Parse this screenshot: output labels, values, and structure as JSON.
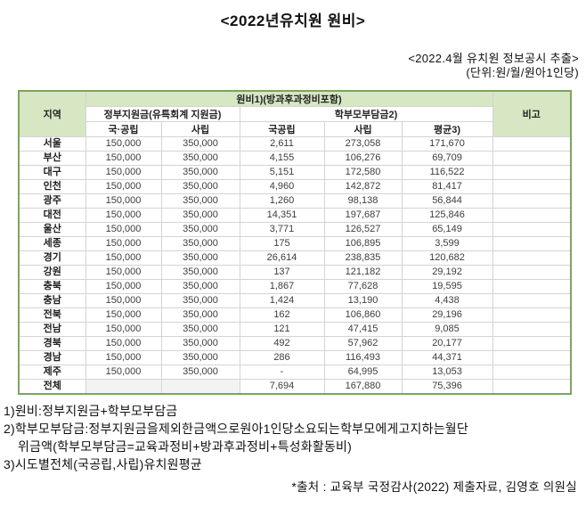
{
  "page": {
    "title": "<2022년유치원 원비>",
    "caption_line1": "<2022.4월 유치원 정보공시 추출>",
    "caption_line2": "(단위:원/월/원아1인당)"
  },
  "chart_data": {
    "type": "table",
    "title": "2022년유치원 원비",
    "unit": "원/월/원아1인당",
    "header": {
      "region": "지역",
      "group_top": "원비1)(방과후과정비포함)",
      "group_gov": "정부지원금(유특회계 지원금)",
      "group_parent": "학부모부담금2)",
      "sub_gov_public": "국·공립",
      "sub_gov_private": "사립",
      "sub_parent_public": "국공립",
      "sub_parent_private": "사립",
      "sub_parent_avg": "평균3)",
      "note": "비고"
    },
    "rows": [
      [
        "서울",
        "150,000",
        "350,000",
        "2,611",
        "273,058",
        "171,670",
        ""
      ],
      [
        "부산",
        "150,000",
        "350,000",
        "4,155",
        "106,276",
        "69,709",
        ""
      ],
      [
        "대구",
        "150,000",
        "350,000",
        "5,151",
        "172,580",
        "116,522",
        ""
      ],
      [
        "인천",
        "150,000",
        "350,000",
        "4,960",
        "142,872",
        "81,417",
        ""
      ],
      [
        "광주",
        "150,000",
        "350,000",
        "1,260",
        "98,138",
        "56,844",
        ""
      ],
      [
        "대전",
        "150,000",
        "350,000",
        "14,351",
        "197,687",
        "125,846",
        ""
      ],
      [
        "울산",
        "150,000",
        "350,000",
        "3,771",
        "126,527",
        "65,149",
        ""
      ],
      [
        "세종",
        "150,000",
        "350,000",
        "175",
        "106,895",
        "3,599",
        ""
      ],
      [
        "경기",
        "150,000",
        "350,000",
        "26,614",
        "238,835",
        "120,682",
        ""
      ],
      [
        "강원",
        "150,000",
        "350,000",
        "137",
        "121,182",
        "29,192",
        ""
      ],
      [
        "충북",
        "150,000",
        "350,000",
        "1,867",
        "77,628",
        "19,595",
        ""
      ],
      [
        "충남",
        "150,000",
        "350,000",
        "1,424",
        "13,190",
        "4,438",
        ""
      ],
      [
        "전북",
        "150,000",
        "350,000",
        "162",
        "106,860",
        "29,196",
        ""
      ],
      [
        "전남",
        "150,000",
        "350,000",
        "121",
        "47,415",
        "9,085",
        ""
      ],
      [
        "경북",
        "150,000",
        "350,000",
        "492",
        "57,962",
        "20,177",
        ""
      ],
      [
        "경남",
        "150,000",
        "350,000",
        "286",
        "116,493",
        "44,371",
        ""
      ],
      [
        "제주",
        "150,000",
        "350,000",
        "-",
        "64,995",
        "13,053",
        ""
      ],
      [
        "전체",
        "",
        "",
        "7,694",
        "167,880",
        "75,396",
        ""
      ]
    ]
  },
  "footnotes": {
    "line1": "1)원비:정부지원금+학부모부담금",
    "line2": "2)학부모부담금:정부지원금을제외한금액으로원아1인당소요되는학부모에게고지하는월단",
    "line2_cont": "위금액(학부모부담금=교육과정비+방과후과정비+특성화활동비)",
    "line3": "3)시도별전체(국공립,사립)유치원평균"
  },
  "source": "*출처 : 교육부 국정감사(2022) 제출자료, 김영호 의원실",
  "colors": {
    "header_fill": "#d7e6c3",
    "table_border": "#7ca55d",
    "grid_line": "#d4d4d4"
  }
}
